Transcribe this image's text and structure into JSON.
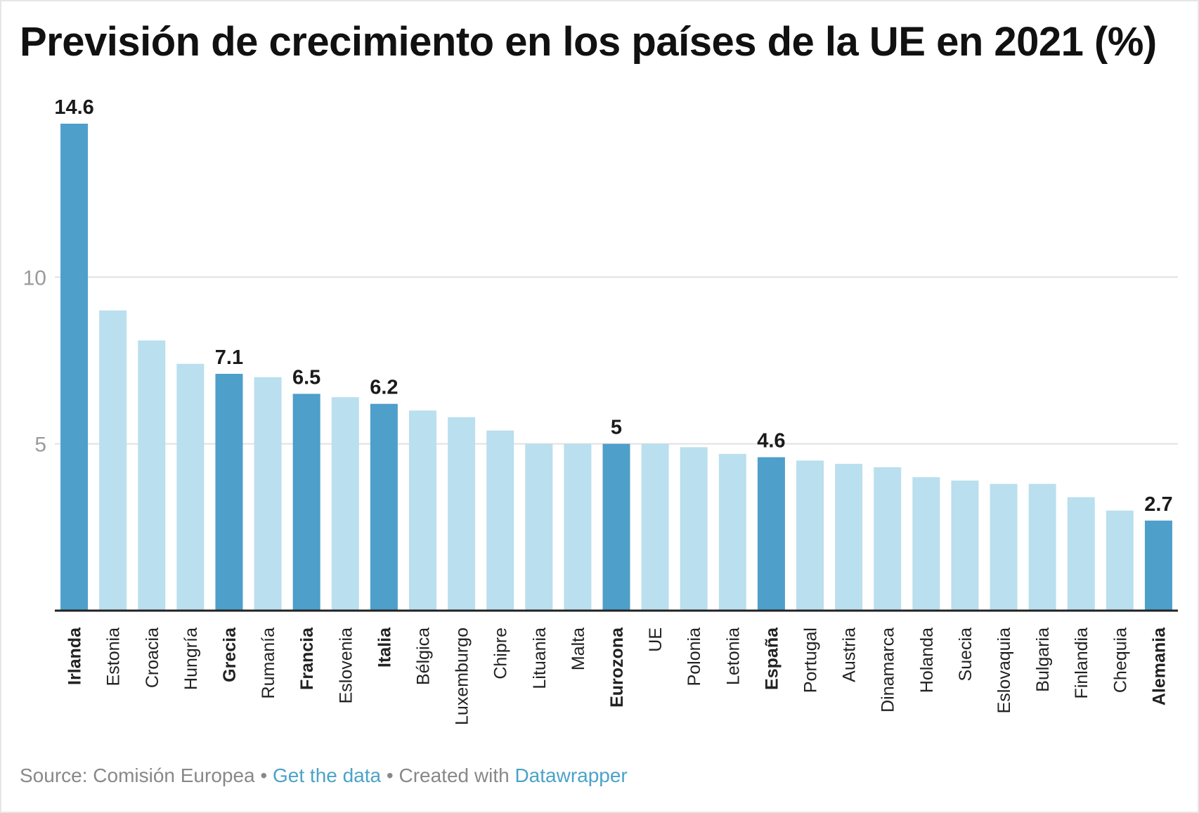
{
  "title": "Previsión de crecimiento en los países de la UE en 2021 (%)",
  "footer": {
    "source_label": "Source: Comisión Europea",
    "get_data": "Get the data",
    "created_with": "Created with",
    "datawrapper": "Datawrapper",
    "separator": "•"
  },
  "colors": {
    "highlight": "#4e9fca",
    "base": "#badfee",
    "grid": "#e0e0e0",
    "axis": "#222222",
    "tick_text": "#9a9a9a",
    "link": "#4ba3c7"
  },
  "chart_data": {
    "type": "bar",
    "title": "Previsión de crecimiento en los países de la UE en 2021 (%)",
    "xlabel": "",
    "ylabel": "",
    "ylim": [
      0,
      14.6
    ],
    "yticks": [
      5,
      10
    ],
    "ytick_labels": [
      "5",
      "10"
    ],
    "categories": [
      "Irlanda",
      "Estonia",
      "Croacia",
      "Hungría",
      "Grecia",
      "Rumanía",
      "Francia",
      "Eslovenia",
      "Italia",
      "Bélgica",
      "Luxemburgo",
      "Chipre",
      "Lituania",
      "Malta",
      "Eurozona",
      "UE",
      "Polonia",
      "Letonia",
      "España",
      "Portugal",
      "Austria",
      "Dinamarca",
      "Holanda",
      "Suecia",
      "Eslovaquia",
      "Bulgaria",
      "Finlandia",
      "Chequia",
      "Alemania"
    ],
    "values": [
      14.6,
      9.0,
      8.1,
      7.4,
      7.1,
      7.0,
      6.5,
      6.4,
      6.2,
      6.0,
      5.8,
      5.4,
      5.0,
      5.0,
      5.0,
      5.0,
      4.9,
      4.7,
      4.6,
      4.5,
      4.4,
      4.3,
      4.0,
      3.9,
      3.8,
      3.8,
      3.4,
      3.0,
      2.7
    ],
    "highlighted": [
      true,
      false,
      false,
      false,
      true,
      false,
      true,
      false,
      true,
      false,
      false,
      false,
      false,
      false,
      true,
      false,
      false,
      false,
      true,
      false,
      false,
      false,
      false,
      false,
      false,
      false,
      false,
      false,
      true
    ],
    "value_labels": [
      "14.6",
      "",
      "",
      "",
      "7.1",
      "",
      "6.5",
      "",
      "6.2",
      "",
      "",
      "",
      "",
      "",
      "5",
      "",
      "",
      "",
      "4.6",
      "",
      "",
      "",
      "",
      "",
      "",
      "",
      "",
      "",
      "2.7"
    ],
    "grid": true
  }
}
